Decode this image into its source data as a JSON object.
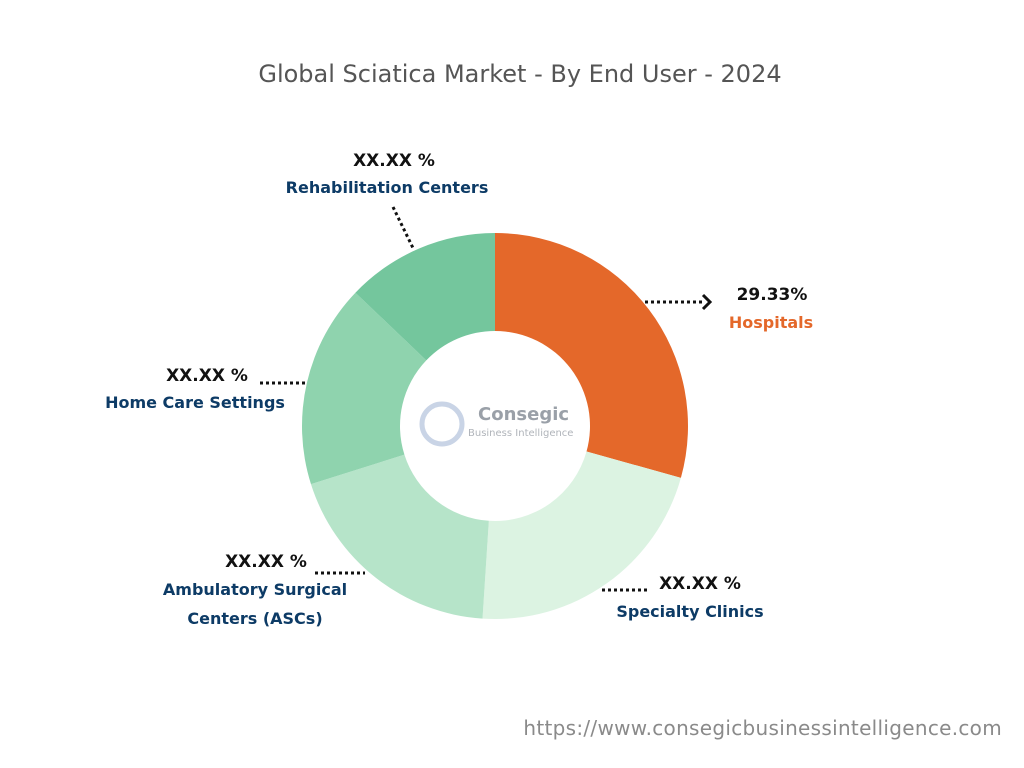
{
  "chart_data": {
    "type": "donut",
    "title": "Global Sciatica Market - By End User - 2024",
    "categories": [
      "Hospitals",
      "Specialty Clinics",
      "Ambulatory Surgical Centers (ASCs)",
      "Home Care Settings",
      "Rehabilitation Centers"
    ],
    "values": [
      29.33,
      21.7,
      19.1,
      17.0,
      12.87
    ],
    "value_labels": [
      "29.33%",
      "XX.XX %",
      "XX.XX %",
      "XX.XX %",
      "XX.XX %"
    ],
    "colors": [
      "#e4682a",
      "#dcf3e2",
      "#b6e4c9",
      "#8fd3ae",
      "#74c69d"
    ],
    "watermark": [
      "Consegic",
      "Business Intelligence"
    ],
    "source": "https://www.consegicbusinessintelligence.com"
  }
}
